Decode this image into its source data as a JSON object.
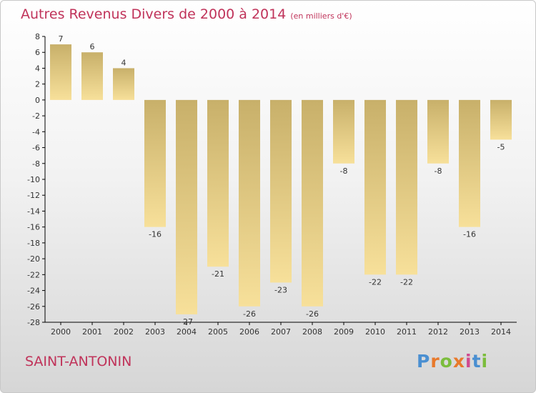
{
  "chart_data": {
    "type": "bar",
    "title": "Autres Revenus Divers de 2000 à 2014",
    "unit": "(en milliers d'€)",
    "categories": [
      "2000",
      "2001",
      "2002",
      "2003",
      "2004",
      "2005",
      "2006",
      "2007",
      "2008",
      "2009",
      "2010",
      "2011",
      "2012",
      "2013",
      "2014"
    ],
    "values": [
      7,
      6,
      4,
      -16,
      -27,
      -21,
      -26,
      -23,
      -26,
      -8,
      -22,
      -22,
      -8,
      -16,
      -5
    ],
    "ylim": [
      -28,
      8
    ],
    "yticks": [
      8,
      6,
      4,
      2,
      0,
      -2,
      -4,
      -6,
      -8,
      -10,
      -12,
      -14,
      -16,
      -18,
      -20,
      -22,
      -24,
      -26,
      -28
    ],
    "grid": false,
    "legend": "none",
    "bar_color_light": "#f7e09a",
    "bar_color_dark": "#c8b06a"
  },
  "footer": {
    "commune": "SAINT-ANTONIN",
    "logo_text": "Proxiti",
    "logo_colors": [
      "#4a8fd1",
      "#e8792b",
      "#7bbd3c",
      "#e8792b",
      "#d04a8f",
      "#4a8fd1",
      "#7bbd3c"
    ]
  },
  "colors": {
    "title": "#c0335a",
    "axis": "#000000"
  }
}
